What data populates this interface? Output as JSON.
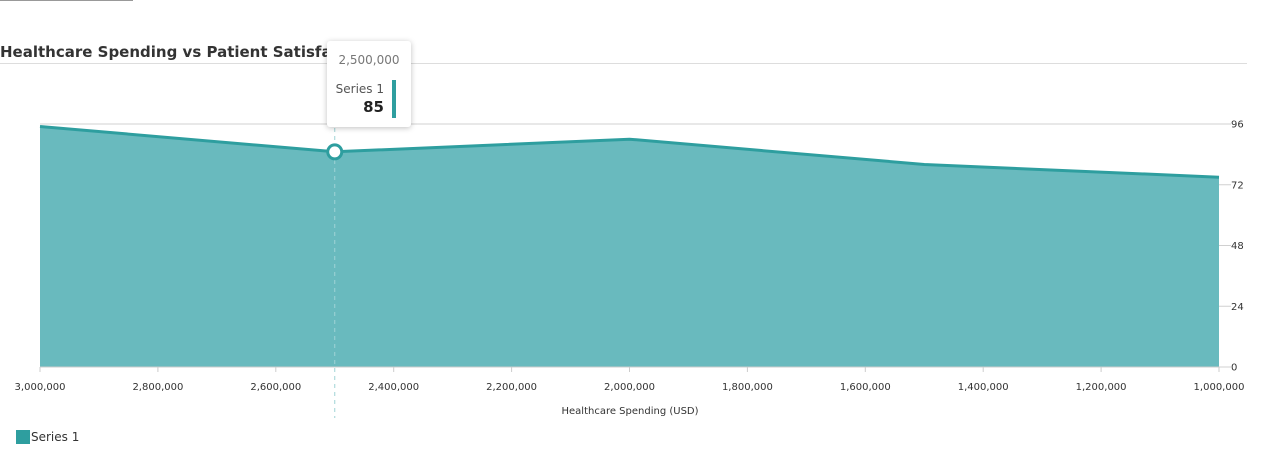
{
  "colors": {
    "series": "#2e9e9f",
    "area_fill": "#69babe",
    "grid": "#d0d0d0",
    "title_rule": "#dddddd"
  },
  "chart_data": {
    "type": "area",
    "title": "Healthcare Spending vs Patient Satisfaction (A",
    "xlabel": "Healthcare Spending (USD)",
    "ylabel": "",
    "x_reversed": true,
    "xlim": [
      1000000,
      3000000
    ],
    "ylim": [
      0,
      96
    ],
    "x_ticks": [
      "3,000,000",
      "2,800,000",
      "2,600,000",
      "2,400,000",
      "2,200,000",
      "2,000,000",
      "1,800,000",
      "1,600,000",
      "1,400,000",
      "1,200,000",
      "1,000,000"
    ],
    "y_ticks": [
      "0",
      "24",
      "48",
      "72",
      "96"
    ],
    "y_axis_position": "right",
    "grid": true,
    "legend_position": "bottom-left",
    "series": [
      {
        "name": "Series 1",
        "x": [
          3000000,
          2500000,
          2000000,
          1500000,
          1000000
        ],
        "values": [
          95,
          85,
          90,
          80,
          75
        ]
      }
    ],
    "tooltip": {
      "x_label": "2,500,000",
      "series_name": "Series 1",
      "value": "85"
    }
  }
}
